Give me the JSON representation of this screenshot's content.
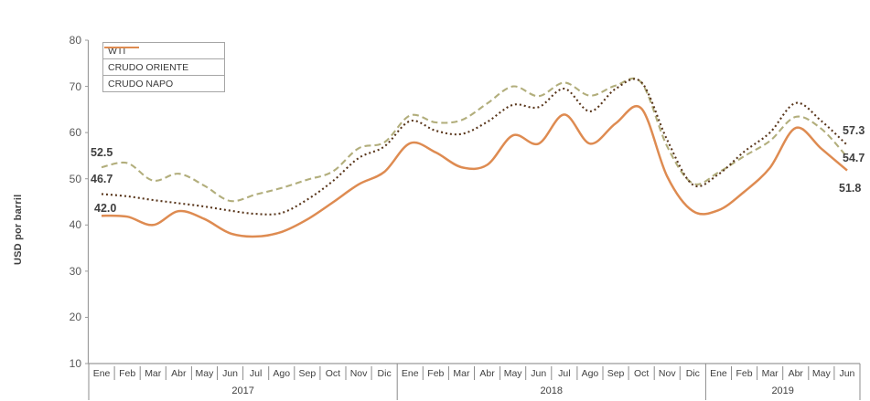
{
  "chart_data": {
    "type": "line",
    "ylabel": "USD por barril",
    "ylim": [
      10,
      80
    ],
    "yticks": [
      80,
      70,
      60,
      50,
      40,
      30,
      20,
      10
    ],
    "grid": false,
    "legend_position": "top-left",
    "years": [
      {
        "year": "2017",
        "months": [
          "Ene",
          "Feb",
          "Mar",
          "Abr",
          "May",
          "Jun",
          "Jul",
          "Ago",
          "Sep",
          "Oct",
          "Nov",
          "Dic"
        ]
      },
      {
        "year": "2018",
        "months": [
          "Ene",
          "Feb",
          "Mar",
          "Abr",
          "May",
          "Jun",
          "Jul",
          "Ago",
          "Sep",
          "Oct",
          "Nov",
          "Dic"
        ]
      },
      {
        "year": "2019",
        "months": [
          "Ene",
          "Feb",
          "Mar",
          "Abr",
          "May",
          "Jun"
        ]
      }
    ],
    "series": [
      {
        "name": "WTI",
        "line_style": "dashed",
        "color": "#b2ae7c",
        "values": [
          52.5,
          53.4,
          49.6,
          51.1,
          48.5,
          45.2,
          46.6,
          48.0,
          49.8,
          51.6,
          56.6,
          57.9,
          63.7,
          62.2,
          62.7,
          66.3,
          70.0,
          67.9,
          70.8,
          68.0,
          70.2,
          70.8,
          57.0,
          49.0,
          51.4,
          54.9,
          58.2,
          63.4,
          60.8,
          54.7
        ]
      },
      {
        "name": "CRUDO ORIENTE",
        "line_style": "dotted",
        "color": "#59361b",
        "values": [
          46.7,
          46.2,
          45.4,
          44.7,
          44.0,
          43.1,
          42.4,
          42.6,
          45.5,
          49.5,
          54.5,
          57.0,
          62.5,
          60.4,
          59.7,
          62.3,
          66.0,
          65.5,
          69.5,
          64.6,
          69.5,
          70.9,
          58.4,
          48.7,
          51.0,
          55.9,
          60.0,
          66.4,
          62.5,
          57.3
        ]
      },
      {
        "name": "CRUDO NAPO",
        "line_style": "solid",
        "color": "#de8b51",
        "values": [
          42.0,
          41.8,
          40.0,
          43.0,
          41.3,
          38.2,
          37.5,
          38.5,
          41.2,
          44.9,
          48.8,
          51.5,
          57.7,
          55.7,
          52.5,
          53.0,
          59.4,
          57.6,
          63.9,
          57.6,
          62.0,
          65.2,
          50.5,
          43.0,
          43.2,
          47.2,
          52.4,
          61.0,
          56.5,
          51.8
        ]
      }
    ],
    "point_labels": {
      "left": [
        {
          "series": "WTI",
          "text": "52.5"
        },
        {
          "series": "CRUDO ORIENTE",
          "text": "46.7"
        },
        {
          "series": "CRUDO NAPO",
          "text": "42.0"
        }
      ],
      "right": [
        {
          "series": "CRUDO ORIENTE",
          "text": "57.3"
        },
        {
          "series": "WTI",
          "text": "54.7"
        },
        {
          "series": "CRUDO NAPO",
          "text": "51.8"
        }
      ]
    }
  },
  "colors": {
    "axis": "#9b9b9b",
    "divider": "#8c8c8c",
    "tick_text": "#595959",
    "label_text": "#3f3f3f"
  }
}
